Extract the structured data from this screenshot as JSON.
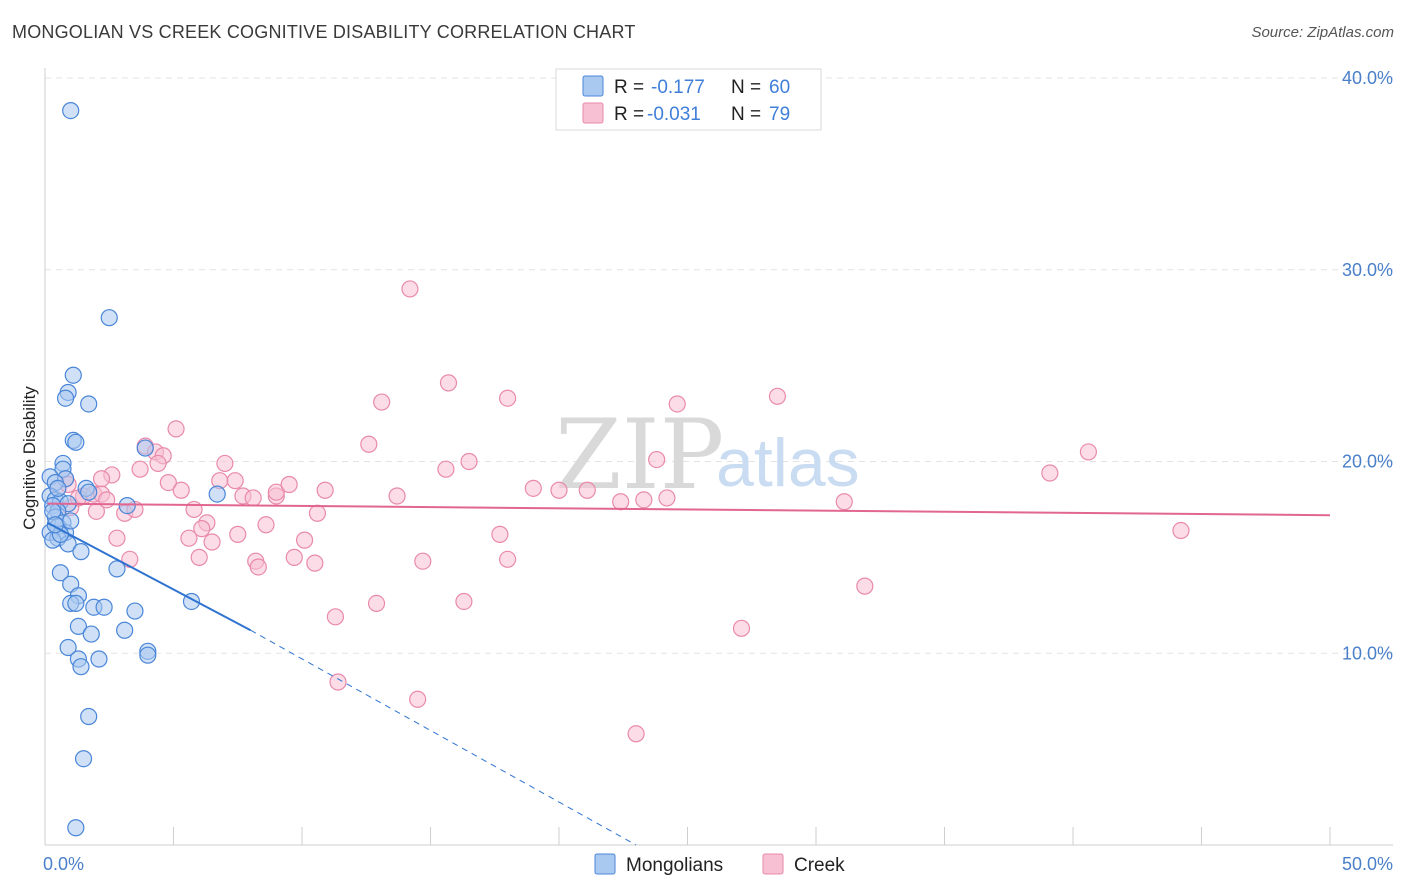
{
  "header": {
    "title": "MONGOLIAN VS CREEK COGNITIVE DISABILITY CORRELATION CHART",
    "source": "Source: ZipAtlas.com"
  },
  "watermark": {
    "zip": "ZIP",
    "atlas": "atlas"
  },
  "legend": {
    "rows": [
      {
        "r_label": "R =",
        "r_value": "-0.177",
        "n_label": "N =",
        "n_value": "60"
      },
      {
        "r_label": "R =",
        "r_value": "-0.031",
        "n_label": "N =",
        "n_value": "79"
      }
    ]
  },
  "bottom_legend": {
    "mongolians": "Mongolians",
    "creek": "Creek"
  },
  "colors": {
    "mongolians_fill": "#a9c9f1",
    "mongolians_stroke": "#4a86d8",
    "mongolians_line": "#2f73d1",
    "creek_fill": "#f7c0d3",
    "creek_stroke": "#e98aaa",
    "creek_line": "#e26692",
    "tick_label": "#4a7fc9",
    "grid": "#e3e3e3"
  },
  "chart_data": {
    "type": "scatter",
    "title": "MONGOLIAN VS CREEK COGNITIVE DISABILITY CORRELATION CHART",
    "xlabel": "",
    "ylabel": "Cognitive Disability",
    "xlim": [
      0,
      50
    ],
    "ylim": [
      0,
      40
    ],
    "x_tick_labels": [
      "0.0%",
      "50.0%"
    ],
    "y_ticks": [
      10,
      20,
      30,
      40
    ],
    "y_tick_labels": [
      "10.0%",
      "20.0%",
      "30.0%",
      "40.0%"
    ],
    "grid": true,
    "legend_position": "top-center",
    "series": [
      {
        "name": "Mongolians",
        "r": -0.177,
        "n": 60,
        "trend": {
          "x": [
            0.1,
            8.0
          ],
          "y": [
            16.8,
            11.2
          ],
          "dashed_to": [
            23.0,
            0.0
          ]
        },
        "points": [
          [
            1.0,
            38.3
          ],
          [
            2.5,
            27.5
          ],
          [
            1.1,
            24.5
          ],
          [
            0.9,
            23.6
          ],
          [
            0.8,
            23.3
          ],
          [
            1.7,
            23.0
          ],
          [
            1.1,
            21.1
          ],
          [
            1.2,
            21.0
          ],
          [
            3.9,
            20.7
          ],
          [
            0.7,
            19.9
          ],
          [
            0.7,
            19.6
          ],
          [
            0.2,
            19.2
          ],
          [
            0.8,
            19.1
          ],
          [
            0.4,
            18.9
          ],
          [
            1.6,
            18.6
          ],
          [
            1.7,
            18.4
          ],
          [
            0.2,
            18.2
          ],
          [
            0.4,
            18.0
          ],
          [
            0.6,
            17.9
          ],
          [
            6.7,
            18.3
          ],
          [
            0.9,
            17.8
          ],
          [
            3.2,
            17.7
          ],
          [
            0.3,
            17.7
          ],
          [
            0.5,
            17.4
          ],
          [
            0.4,
            17.1
          ],
          [
            0.7,
            16.8
          ],
          [
            0.5,
            16.6
          ],
          [
            0.2,
            16.3
          ],
          [
            0.8,
            16.3
          ],
          [
            0.5,
            16.0
          ],
          [
            0.3,
            15.9
          ],
          [
            0.9,
            15.7
          ],
          [
            1.4,
            15.3
          ],
          [
            0.6,
            14.2
          ],
          [
            2.8,
            14.4
          ],
          [
            1.0,
            13.6
          ],
          [
            1.3,
            13.0
          ],
          [
            1.0,
            12.6
          ],
          [
            1.2,
            12.6
          ],
          [
            1.9,
            12.4
          ],
          [
            2.3,
            12.4
          ],
          [
            3.5,
            12.2
          ],
          [
            5.7,
            12.7
          ],
          [
            1.3,
            11.4
          ],
          [
            1.8,
            11.0
          ],
          [
            3.1,
            11.2
          ],
          [
            0.9,
            10.3
          ],
          [
            4.0,
            10.1
          ],
          [
            4.0,
            9.9
          ],
          [
            1.3,
            9.7
          ],
          [
            2.1,
            9.7
          ],
          [
            1.4,
            9.3
          ],
          [
            1.7,
            6.7
          ],
          [
            1.5,
            4.5
          ],
          [
            1.2,
            0.9
          ],
          [
            0.5,
            18.6
          ],
          [
            0.3,
            17.4
          ],
          [
            0.6,
            16.2
          ],
          [
            1.0,
            16.9
          ],
          [
            0.4,
            16.7
          ]
        ]
      },
      {
        "name": "Creek",
        "r": -0.031,
        "n": 79,
        "trend": {
          "x": [
            0.1,
            50.0
          ],
          "y": [
            17.8,
            17.2
          ]
        },
        "points": [
          [
            14.2,
            29.0
          ],
          [
            15.7,
            24.1
          ],
          [
            13.1,
            23.1
          ],
          [
            18.0,
            23.3
          ],
          [
            24.6,
            23.0
          ],
          [
            28.5,
            23.4
          ],
          [
            5.1,
            21.7
          ],
          [
            12.6,
            20.9
          ],
          [
            3.9,
            20.8
          ],
          [
            4.3,
            20.5
          ],
          [
            4.6,
            20.3
          ],
          [
            4.4,
            19.9
          ],
          [
            7.0,
            19.9
          ],
          [
            15.6,
            19.6
          ],
          [
            16.5,
            20.0
          ],
          [
            23.8,
            20.1
          ],
          [
            39.1,
            19.4
          ],
          [
            40.6,
            20.5
          ],
          [
            3.7,
            19.6
          ],
          [
            2.6,
            19.3
          ],
          [
            2.2,
            19.1
          ],
          [
            0.8,
            19.1
          ],
          [
            0.5,
            18.6
          ],
          [
            1.5,
            18.2
          ],
          [
            1.9,
            18.3
          ],
          [
            2.2,
            18.3
          ],
          [
            4.8,
            18.9
          ],
          [
            5.3,
            18.5
          ],
          [
            6.8,
            19.0
          ],
          [
            7.4,
            19.0
          ],
          [
            7.7,
            18.2
          ],
          [
            8.1,
            18.1
          ],
          [
            9.0,
            18.2
          ],
          [
            9.0,
            18.4
          ],
          [
            9.5,
            18.8
          ],
          [
            10.9,
            18.5
          ],
          [
            13.7,
            18.2
          ],
          [
            19.0,
            18.6
          ],
          [
            20.0,
            18.5
          ],
          [
            21.1,
            18.5
          ],
          [
            22.4,
            17.9
          ],
          [
            23.3,
            18.0
          ],
          [
            24.2,
            18.1
          ],
          [
            31.1,
            17.9
          ],
          [
            1.0,
            17.6
          ],
          [
            2.0,
            17.4
          ],
          [
            3.1,
            17.3
          ],
          [
            3.5,
            17.5
          ],
          [
            5.8,
            17.5
          ],
          [
            6.3,
            16.8
          ],
          [
            10.6,
            17.3
          ],
          [
            6.1,
            16.5
          ],
          [
            7.5,
            16.2
          ],
          [
            8.6,
            16.7
          ],
          [
            5.6,
            16.0
          ],
          [
            6.5,
            15.8
          ],
          [
            2.8,
            16.0
          ],
          [
            10.1,
            15.9
          ],
          [
            17.7,
            16.2
          ],
          [
            44.2,
            16.4
          ],
          [
            3.3,
            14.9
          ],
          [
            6.0,
            15.0
          ],
          [
            8.2,
            14.8
          ],
          [
            8.3,
            14.5
          ],
          [
            9.7,
            15.0
          ],
          [
            10.5,
            14.7
          ],
          [
            14.7,
            14.8
          ],
          [
            18.0,
            14.9
          ],
          [
            31.9,
            13.5
          ],
          [
            12.9,
            12.6
          ],
          [
            16.3,
            12.7
          ],
          [
            11.3,
            11.9
          ],
          [
            27.1,
            11.3
          ],
          [
            11.4,
            8.5
          ],
          [
            14.5,
            7.6
          ],
          [
            23.0,
            5.8
          ],
          [
            1.3,
            18.1
          ],
          [
            2.4,
            18.0
          ],
          [
            0.9,
            18.8
          ]
        ]
      }
    ]
  }
}
